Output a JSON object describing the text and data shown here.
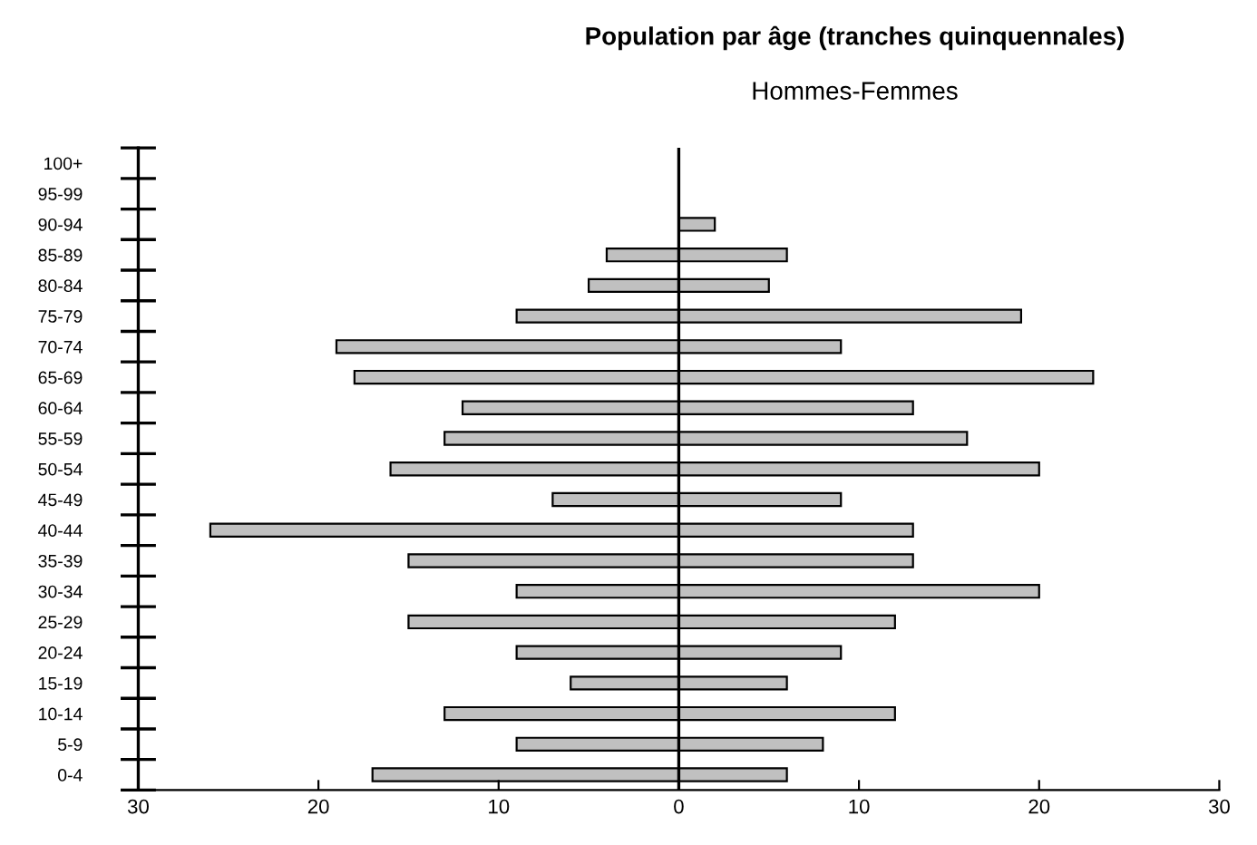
{
  "chart_data": {
    "type": "bar",
    "orientation": "horizontal",
    "title": "Population par âge (tranches quinquennales)",
    "subtitle": "Hommes-Femmes",
    "categories": [
      "100+",
      "95-99",
      "90-94",
      "85-89",
      "80-84",
      "75-79",
      "70-74",
      "65-69",
      "60-64",
      "55-59",
      "50-54",
      "45-49",
      "40-44",
      "35-39",
      "30-34",
      "25-29",
      "20-24",
      "15-19",
      "10-14",
      "5-9",
      "0-4"
    ],
    "series": [
      {
        "color": "#c0c0c0",
        "values": [
          null,
          null,
          null,
          -4,
          -5,
          -9,
          -19,
          -18,
          -12,
          -13,
          -16,
          -7,
          -26,
          -15,
          -9,
          -15,
          -9,
          -6,
          -13,
          -9,
          -17
        ]
      },
      {
        "color": "#c0c0c0",
        "values": [
          null,
          null,
          2,
          6,
          5,
          19,
          9,
          23,
          13,
          16,
          20,
          9,
          13,
          13,
          20,
          12,
          9,
          6,
          12,
          8,
          6
        ]
      }
    ],
    "xlim": [
      -30,
      30
    ],
    "xticks": [
      {
        "value": -30,
        "label": "30"
      },
      {
        "value": -20,
        "label": "20"
      },
      {
        "value": -10,
        "label": "10"
      },
      0,
      10,
      20,
      30
    ],
    "ref_lines": [
      {
        "axis": "x",
        "value": 0,
        "color": "#000000"
      }
    ],
    "stacked": true,
    "grid": false,
    "legend": false
  }
}
